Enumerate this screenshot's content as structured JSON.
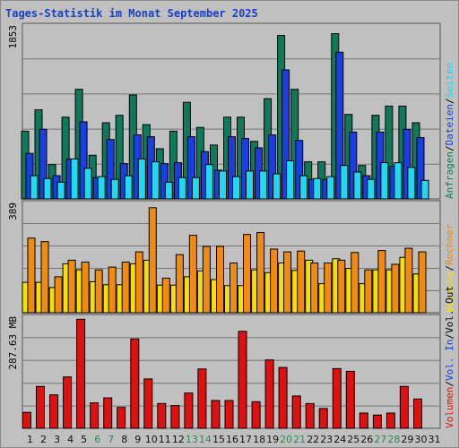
{
  "title": "Tages-Statistik im Monat September 2025",
  "colors": {
    "anfragen": "#0f7a5a",
    "dateien": "#1a3fe0",
    "seiten": "#22d8f0",
    "besuche": "#f5e000",
    "rechner": "#f08a10",
    "volumen": "#e01010",
    "weekend_label": "#2a8a5a",
    "weekday_label": "#111111",
    "title": "#1a3fc4"
  },
  "days": [
    "1",
    "2",
    "3",
    "4",
    "5",
    "6",
    "7",
    "8",
    "9",
    "10",
    "11",
    "12",
    "13",
    "14",
    "15",
    "16",
    "17",
    "18",
    "19",
    "20",
    "21",
    "22",
    "23",
    "24",
    "25",
    "26",
    "27",
    "28",
    "29",
    "30",
    "31"
  ],
  "weekend_days": [
    "6",
    "7",
    "13",
    "14",
    "20",
    "21",
    "27",
    "28"
  ],
  "chart_data": [
    {
      "type": "bar",
      "name": "requests-files-pages",
      "y_max_label": "1853",
      "ylim": [
        0,
        1853
      ],
      "legend": [
        "Anfragen",
        "/",
        "Dateien",
        "/",
        "Seiten"
      ],
      "series": [
        {
          "name": "Anfragen",
          "values": [
            730,
            960,
            370,
            880,
            1180,
            470,
            820,
            900,
            1120,
            800,
            540,
            730,
            1040,
            770,
            580,
            880,
            880,
            620,
            1080,
            1760,
            1180,
            400,
            400,
            1780,
            910,
            360,
            900,
            1000,
            1000,
            820
          ]
        },
        {
          "name": "Dateien",
          "values": [
            490,
            750,
            250,
            430,
            830,
            230,
            640,
            380,
            690,
            670,
            380,
            390,
            670,
            510,
            310,
            670,
            650,
            550,
            690,
            1390,
            630,
            210,
            210,
            1580,
            720,
            250,
            720,
            350,
            750,
            660
          ]
        },
        {
          "name": "Seiten",
          "values": [
            250,
            220,
            180,
            430,
            330,
            240,
            210,
            250,
            430,
            400,
            180,
            230,
            230,
            370,
            300,
            240,
            300,
            300,
            270,
            410,
            250,
            220,
            240,
            360,
            290,
            210,
            390,
            390,
            340,
            200
          ]
        }
      ]
    },
    {
      "type": "bar",
      "name": "visits-hosts",
      "y_max_label": "389",
      "ylim": [
        0,
        389
      ],
      "legend": [
        "Besuche",
        "/",
        "Rechner"
      ],
      "series": [
        {
          "name": "Besuche",
          "values": [
            110,
            110,
            91,
            177,
            155,
            112,
            101,
            101,
            177,
            190,
            100,
            100,
            130,
            151,
            120,
            98,
            98,
            155,
            145,
            180,
            153,
            190,
            105,
            195,
            160,
            105,
            155,
            155,
            200,
            140
          ]
        },
        {
          "name": "Rechner",
          "values": [
            270,
            257,
            130,
            190,
            183,
            155,
            165,
            183,
            220,
            380,
            125,
            210,
            280,
            240,
            240,
            180,
            283,
            290,
            230,
            220,
            223,
            180,
            180,
            190,
            218,
            155,
            225,
            175,
            233,
            220
          ]
        }
      ]
    },
    {
      "type": "bar",
      "name": "volume",
      "y_max_label": "287.63 MB",
      "ylim": [
        0,
        287.63
      ],
      "legend": [
        "Volumen",
        "/",
        "Vol. In",
        "/",
        "Vol. Out"
      ],
      "series": [
        {
          "name": "Volumen",
          "values": [
            42,
            110,
            88,
            135,
            287,
            67,
            80,
            55,
            235,
            130,
            65,
            60,
            93,
            156,
            73,
            73,
            255,
            70,
            180,
            160,
            85,
            65,
            52,
            157,
            150,
            40,
            35,
            40,
            110,
            77
          ]
        }
      ]
    }
  ]
}
